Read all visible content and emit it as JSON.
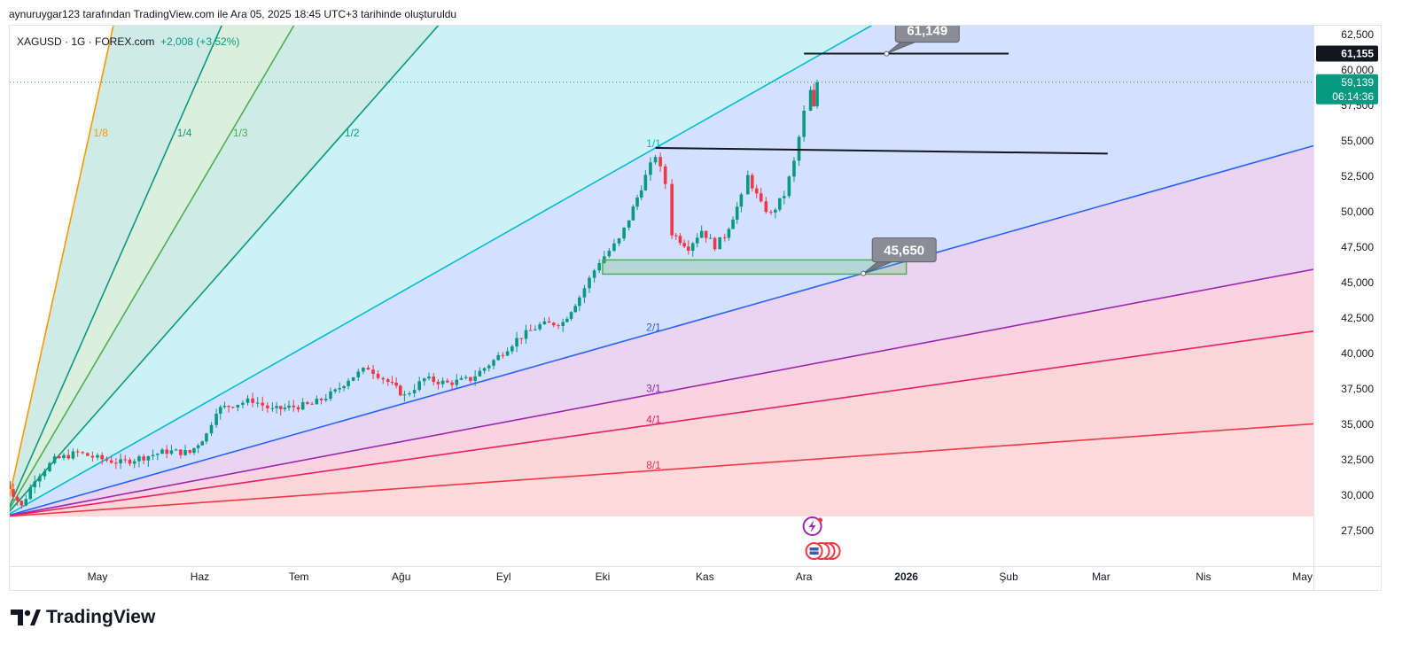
{
  "header": {
    "title": "aynuruygar123 tarafından TradingView.com ile Ara 05, 2025 18:45 UTC+3 tarihinde oluşturuldu"
  },
  "legend": {
    "symbol": "XAGUSD · 1G · FOREX.com",
    "change": "+2,008 (+3,52%)"
  },
  "brand": {
    "name": "TradingView"
  },
  "colors": {
    "up": "#089981",
    "down": "#f23645",
    "axis_text": "#131722"
  },
  "chart_data": {
    "type": "candlestick",
    "title": "",
    "symbol": "XAGUSD",
    "timeframe": "1G",
    "ylim": [
      25000,
      63500
    ],
    "y_ticks": [
      {
        "value": 27500,
        "label": "27,500"
      },
      {
        "value": 30000,
        "label": "30,000"
      },
      {
        "value": 32500,
        "label": "32,500"
      },
      {
        "value": 35000,
        "label": "35,000"
      },
      {
        "value": 37500,
        "label": "37,500"
      },
      {
        "value": 40000,
        "label": "40,000"
      },
      {
        "value": 42500,
        "label": "42,500"
      },
      {
        "value": 45000,
        "label": "45,000"
      },
      {
        "value": 47500,
        "label": "47,500"
      },
      {
        "value": 50000,
        "label": "50,000"
      },
      {
        "value": 52500,
        "label": "52,500"
      },
      {
        "value": 55000,
        "label": "55,000"
      },
      {
        "value": 57500,
        "label": "57,500"
      },
      {
        "value": 60000,
        "label": "60,000"
      },
      {
        "value": 62500,
        "label": "62,500"
      }
    ],
    "x_ticks": [
      {
        "label": "May",
        "x": "2025-05-01",
        "bold": false
      },
      {
        "label": "Haz",
        "x": "2025-06-01",
        "bold": false
      },
      {
        "label": "Tem",
        "x": "2025-07-01",
        "bold": false
      },
      {
        "label": "Ağu",
        "x": "2025-08-01",
        "bold": false
      },
      {
        "label": "Eyl",
        "x": "2025-09-01",
        "bold": false
      },
      {
        "label": "Eki",
        "x": "2025-10-01",
        "bold": false
      },
      {
        "label": "Kas",
        "x": "2025-11-01",
        "bold": false
      },
      {
        "label": "Ara",
        "x": "2025-12-01",
        "bold": false
      },
      {
        "label": "2026",
        "x": "2026-01-01",
        "bold": true
      },
      {
        "label": "Şub",
        "x": "2026-02-01",
        "bold": false
      },
      {
        "label": "Mar",
        "x": "2026-03-01",
        "bold": false
      },
      {
        "label": "Nis",
        "x": "2026-04-01",
        "bold": false
      },
      {
        "label": "May",
        "x": "2026-05-01",
        "bold": false
      }
    ],
    "last_price": {
      "value": 59139,
      "label": "59,139",
      "countdown": "06:14:36"
    },
    "price_marker": {
      "value": 61155,
      "label": "61,155"
    },
    "price_path": [
      {
        "x": "2025-04-03",
        "y": 31000
      },
      {
        "x": "2025-04-08",
        "y": 29200
      },
      {
        "x": "2025-04-12",
        "y": 31200
      },
      {
        "x": "2025-04-18",
        "y": 32500
      },
      {
        "x": "2025-04-25",
        "y": 33000
      },
      {
        "x": "2025-05-01",
        "y": 32600
      },
      {
        "x": "2025-05-08",
        "y": 32300
      },
      {
        "x": "2025-05-15",
        "y": 32700
      },
      {
        "x": "2025-05-22",
        "y": 33100
      },
      {
        "x": "2025-05-29",
        "y": 33000
      },
      {
        "x": "2025-06-03",
        "y": 34300
      },
      {
        "x": "2025-06-06",
        "y": 36000
      },
      {
        "x": "2025-06-11",
        "y": 36400
      },
      {
        "x": "2025-06-17",
        "y": 36700
      },
      {
        "x": "2025-06-23",
        "y": 36000
      },
      {
        "x": "2025-06-28",
        "y": 36200
      },
      {
        "x": "2025-07-05",
        "y": 36400
      },
      {
        "x": "2025-07-12",
        "y": 37300
      },
      {
        "x": "2025-07-16",
        "y": 38200
      },
      {
        "x": "2025-07-22",
        "y": 39000
      },
      {
        "x": "2025-07-28",
        "y": 38000
      },
      {
        "x": "2025-08-02",
        "y": 37000
      },
      {
        "x": "2025-08-08",
        "y": 38200
      },
      {
        "x": "2025-08-15",
        "y": 37900
      },
      {
        "x": "2025-08-22",
        "y": 38200
      },
      {
        "x": "2025-08-29",
        "y": 39500
      },
      {
        "x": "2025-09-05",
        "y": 41000
      },
      {
        "x": "2025-09-12",
        "y": 42000
      },
      {
        "x": "2025-09-19",
        "y": 42200
      },
      {
        "x": "2025-09-24",
        "y": 44000
      },
      {
        "x": "2025-09-30",
        "y": 46500
      },
      {
        "x": "2025-10-06",
        "y": 48000
      },
      {
        "x": "2025-10-09",
        "y": 49500
      },
      {
        "x": "2025-10-14",
        "y": 52500
      },
      {
        "x": "2025-10-17",
        "y": 54000
      },
      {
        "x": "2025-10-20",
        "y": 52000
      },
      {
        "x": "2025-10-22",
        "y": 48500
      },
      {
        "x": "2025-10-27",
        "y": 47500
      },
      {
        "x": "2025-10-31",
        "y": 48700
      },
      {
        "x": "2025-11-04",
        "y": 47600
      },
      {
        "x": "2025-11-07",
        "y": 48300
      },
      {
        "x": "2025-11-12",
        "y": 51000
      },
      {
        "x": "2025-11-14",
        "y": 52500
      },
      {
        "x": "2025-11-18",
        "y": 50500
      },
      {
        "x": "2025-11-21",
        "y": 49800
      },
      {
        "x": "2025-11-25",
        "y": 51200
      },
      {
        "x": "2025-11-28",
        "y": 53500
      },
      {
        "x": "2025-12-01",
        "y": 57000
      },
      {
        "x": "2025-12-03",
        "y": 58500
      },
      {
        "x": "2025-12-04",
        "y": 57300
      },
      {
        "x": "2025-12-05",
        "y": 59139
      }
    ],
    "gann_fan": {
      "origin": {
        "x": "2025-04-03",
        "y": 28500
      },
      "reference": {
        "x": "2025-10-17",
        "y": 54500
      },
      "lines": [
        {
          "label": "1/8",
          "color": "#ff9800",
          "label_y": 55300
        },
        {
          "label": "1/4",
          "color": "#089981",
          "label_y": 55300
        },
        {
          "label": "1/3",
          "color": "#4caf50",
          "label_y": 55300
        },
        {
          "label": "1/2",
          "color": "#089981",
          "label_y": 55300
        },
        {
          "label": "1/1",
          "color": "#00bcd4",
          "label_y": 54500
        },
        {
          "label": "2/1",
          "color": "#2962ff",
          "label_y": 0
        },
        {
          "label": "3/1",
          "color": "#9c27b0",
          "label_y": 0
        },
        {
          "label": "4/1",
          "color": "#e91e63",
          "label_y": 0
        },
        {
          "label": "8/1",
          "color": "#f23645",
          "label_y": 0
        }
      ]
    },
    "annotations": [
      {
        "type": "hline",
        "from": "2025-12-01",
        "to": "2026-02-01",
        "y": 61155,
        "color": "#131722"
      },
      {
        "type": "trendline",
        "from": "2025-10-17",
        "to": "2026-03-03",
        "y1": 54500,
        "y2": 54100,
        "color": "#131722"
      },
      {
        "type": "rectangle",
        "from": "2025-10-01",
        "to": "2026-01-01",
        "y1": 45600,
        "y2": 46600,
        "color": "#4caf50"
      },
      {
        "type": "callout",
        "label": "61,149",
        "x": "2025-12-26",
        "y": 61149
      },
      {
        "type": "callout",
        "label": "45,650",
        "x": "2025-12-19",
        "y": 45650
      }
    ]
  }
}
